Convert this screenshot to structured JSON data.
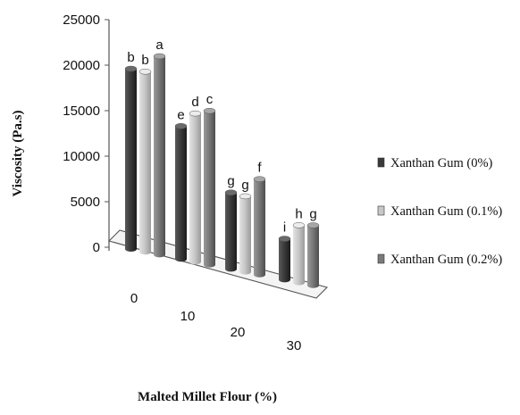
{
  "chart_data": {
    "type": "bar",
    "style": "3d-clustered-column",
    "categories": [
      "0",
      "10",
      "20",
      "30"
    ],
    "xlabel": "Malted Millet Flour (%)",
    "ylabel": "Viscosity (Pa.s)",
    "ylim": [
      0,
      25000
    ],
    "yticks": [
      0,
      5000,
      10000,
      15000,
      20000,
      25000
    ],
    "ytick_labels": [
      "0",
      "5000",
      "10000",
      "15000",
      "20000",
      "25000"
    ],
    "legend_position": "right",
    "grid": false,
    "series": [
      {
        "name": "Xanthan Gum (0%)",
        "color": "#3a3a3a",
        "values": [
          19800,
          14600,
          8400,
          4500
        ],
        "labels": [
          "b",
          "e",
          "g",
          "i"
        ]
      },
      {
        "name": "Xanthan Gum (0.1%)",
        "color": "#c4c4c4",
        "values": [
          19800,
          16300,
          8300,
          6300
        ],
        "labels": [
          "b",
          "d",
          "g",
          "h"
        ]
      },
      {
        "name": "Xanthan Gum (0.2%)",
        "color": "#7a7a7a",
        "values": [
          21800,
          16900,
          10500,
          6600
        ],
        "labels": [
          "a",
          "c",
          "f",
          "g"
        ]
      }
    ]
  }
}
